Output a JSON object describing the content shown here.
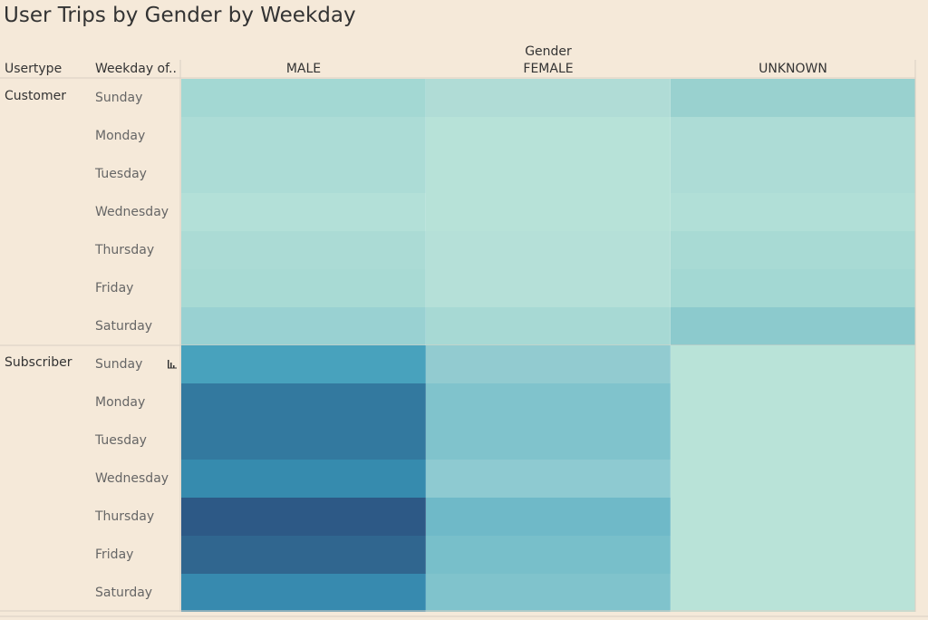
{
  "title": "User Trips by Gender by Weekday",
  "headers": {
    "usertype": "Usertype",
    "weekday": "Weekday of..",
    "gender_axis": "Gender"
  },
  "colors": {
    "background": "#f5e9d9",
    "scale_low": "#b9e3d8",
    "scale_high": "#2d5986"
  },
  "chart_data": {
    "type": "heatmap",
    "title": "User Trips by Gender by Weekday",
    "columns": [
      "MALE",
      "FEMALE",
      "UNKNOWN"
    ],
    "groups": [
      {
        "name": "Customer",
        "rows": [
          "Sunday",
          "Monday",
          "Tuesday",
          "Wednesday",
          "Thursday",
          "Friday",
          "Saturday"
        ],
        "colors": [
          [
            "#a3d8d3",
            "#b0dcd6",
            "#99d1cf"
          ],
          [
            "#acdcd6",
            "#b7e2d8",
            "#addcd6"
          ],
          [
            "#acdcd6",
            "#b7e2d8",
            "#addcd6"
          ],
          [
            "#b3e0d8",
            "#b7e2d8",
            "#b1dfd7"
          ],
          [
            "#abdbd5",
            "#b5e0d8",
            "#a8dad4"
          ],
          [
            "#a8dad4",
            "#b5e0d8",
            "#a3d8d3"
          ],
          [
            "#99d1d2",
            "#a7d9d4",
            "#8ccacd"
          ]
        ]
      },
      {
        "name": "Subscriber",
        "rows": [
          "Sunday",
          "Monday",
          "Tuesday",
          "Wednesday",
          "Thursday",
          "Friday",
          "Saturday"
        ],
        "colors": [
          [
            "#48a2bd",
            "#92cbd0",
            "#b9e3d8"
          ],
          [
            "#33799f",
            "#80c3cc",
            "#b9e3d8"
          ],
          [
            "#33799f",
            "#80c3cc",
            "#b9e3d8"
          ],
          [
            "#368bae",
            "#8ecad1",
            "#b9e3d8"
          ],
          [
            "#2d5986",
            "#6fb9c8",
            "#b9e3d8"
          ],
          [
            "#30668f",
            "#78bfca",
            "#b9e3d8"
          ],
          [
            "#378aaf",
            "#80c3cc",
            "#b9e3d8"
          ]
        ]
      }
    ]
  }
}
